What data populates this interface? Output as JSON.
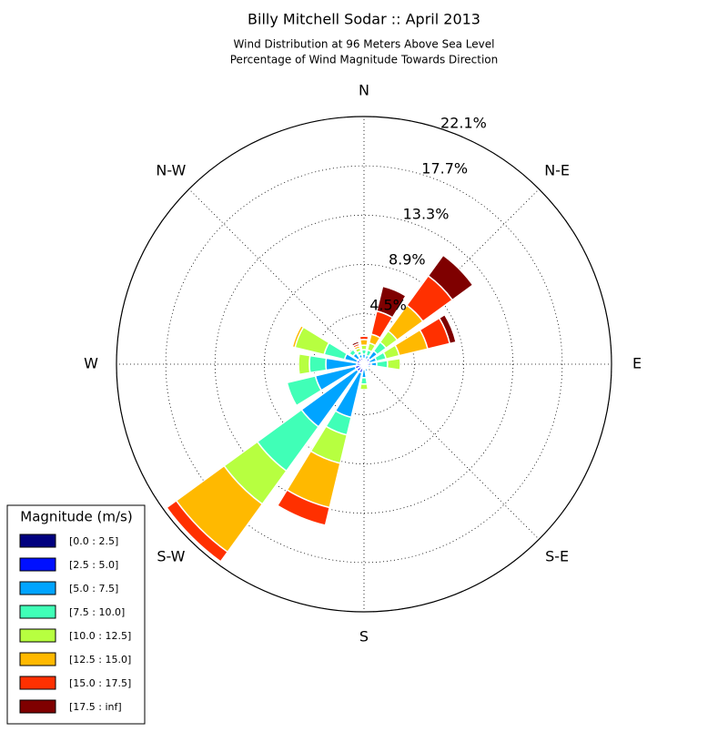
{
  "chart_data": {
    "type": "windrose",
    "title": "Billy Mitchell Sodar :: April 2013",
    "subtitle": [
      "Wind Distribution at 96 Meters Above Sea Level",
      "Percentage of Wind Magnitude Towards Direction"
    ],
    "categories": [
      "N",
      null,
      "N-E",
      null,
      "E",
      null,
      "S-E",
      null,
      "S",
      null,
      "S-W",
      null,
      "W",
      null,
      "N-W",
      null
    ],
    "ylim": [
      0,
      22.1
    ],
    "yticks": [
      {
        "value": 4.5,
        "label": "4.5%"
      },
      {
        "value": 8.9,
        "label": "8.9%"
      },
      {
        "value": 13.3,
        "label": "13.3%"
      },
      {
        "value": 17.7,
        "label": "17.7%"
      },
      {
        "value": 22.1,
        "label": "22.1%"
      }
    ],
    "grid": true,
    "legend_title": "Magnitude (m/s)",
    "legend_position": "lower left",
    "series": [
      {
        "name": "[0.0 : 2.5]",
        "color": "#00007f",
        "values": [
          0.2,
          0.24,
          0.33,
          0.24,
          0.24,
          0.2,
          0.2,
          0.2,
          0.24,
          0.33,
          0.33,
          0.33,
          0.24,
          0.24,
          0.24,
          0.3
        ]
      },
      {
        "name": "[2.5 : 5.0]",
        "color": "#0010ff",
        "values": [
          0.3,
          0.25,
          0.32,
          0.25,
          0.41,
          0.2,
          0.2,
          0.2,
          0.24,
          0.48,
          0.48,
          0.48,
          0.41,
          0.41,
          0.41,
          0.3
        ]
      },
      {
        "name": "[5.0 : 7.5]",
        "color": "#00a4ff",
        "values": [
          0.4,
          0.32,
          0.81,
          0.65,
          0.49,
          0.2,
          0.1,
          0.3,
          0.73,
          4.07,
          6.1,
          3.66,
          2.76,
          1.14,
          0.57,
          0.3
        ]
      },
      {
        "name": "[7.5 : 10.0]",
        "color": "#40ffb7",
        "values": [
          0.4,
          0.49,
          0.98,
          0.89,
          0.97,
          0,
          0,
          0.1,
          0.57,
          1.62,
          4.87,
          2.6,
          1.47,
          1.87,
          0.41,
          0.3
        ]
      },
      {
        "name": "[10.0 : 12.5]",
        "color": "#b7ff40",
        "values": [
          0.4,
          0.65,
          1.22,
          1.22,
          1.14,
          0,
          0,
          0,
          0.49,
          2.6,
          3.66,
          0,
          0.97,
          2.68,
          0,
          0.3
        ]
      },
      {
        "name": "[12.5 : 15.0]",
        "color": "#ffb900",
        "values": [
          0.5,
          0.81,
          2.84,
          2.6,
          0,
          0,
          0,
          0,
          0,
          4.06,
          5.28,
          0,
          0,
          0.24,
          0,
          0.2
        ]
      },
      {
        "name": "[15.0 : 17.5]",
        "color": "#ff3000",
        "values": [
          0.3,
          2.12,
          3.25,
          2.03,
          0,
          0,
          0,
          0,
          0,
          1.63,
          1.06,
          0,
          0,
          0,
          0,
          0.2
        ]
      },
      {
        "name": "[17.5 : inf]",
        "color": "#7f0000",
        "values": [
          0,
          2.27,
          2.27,
          0.57,
          0,
          0,
          0,
          0,
          0,
          0,
          0,
          0,
          0,
          0,
          0,
          0.2
        ]
      }
    ]
  }
}
